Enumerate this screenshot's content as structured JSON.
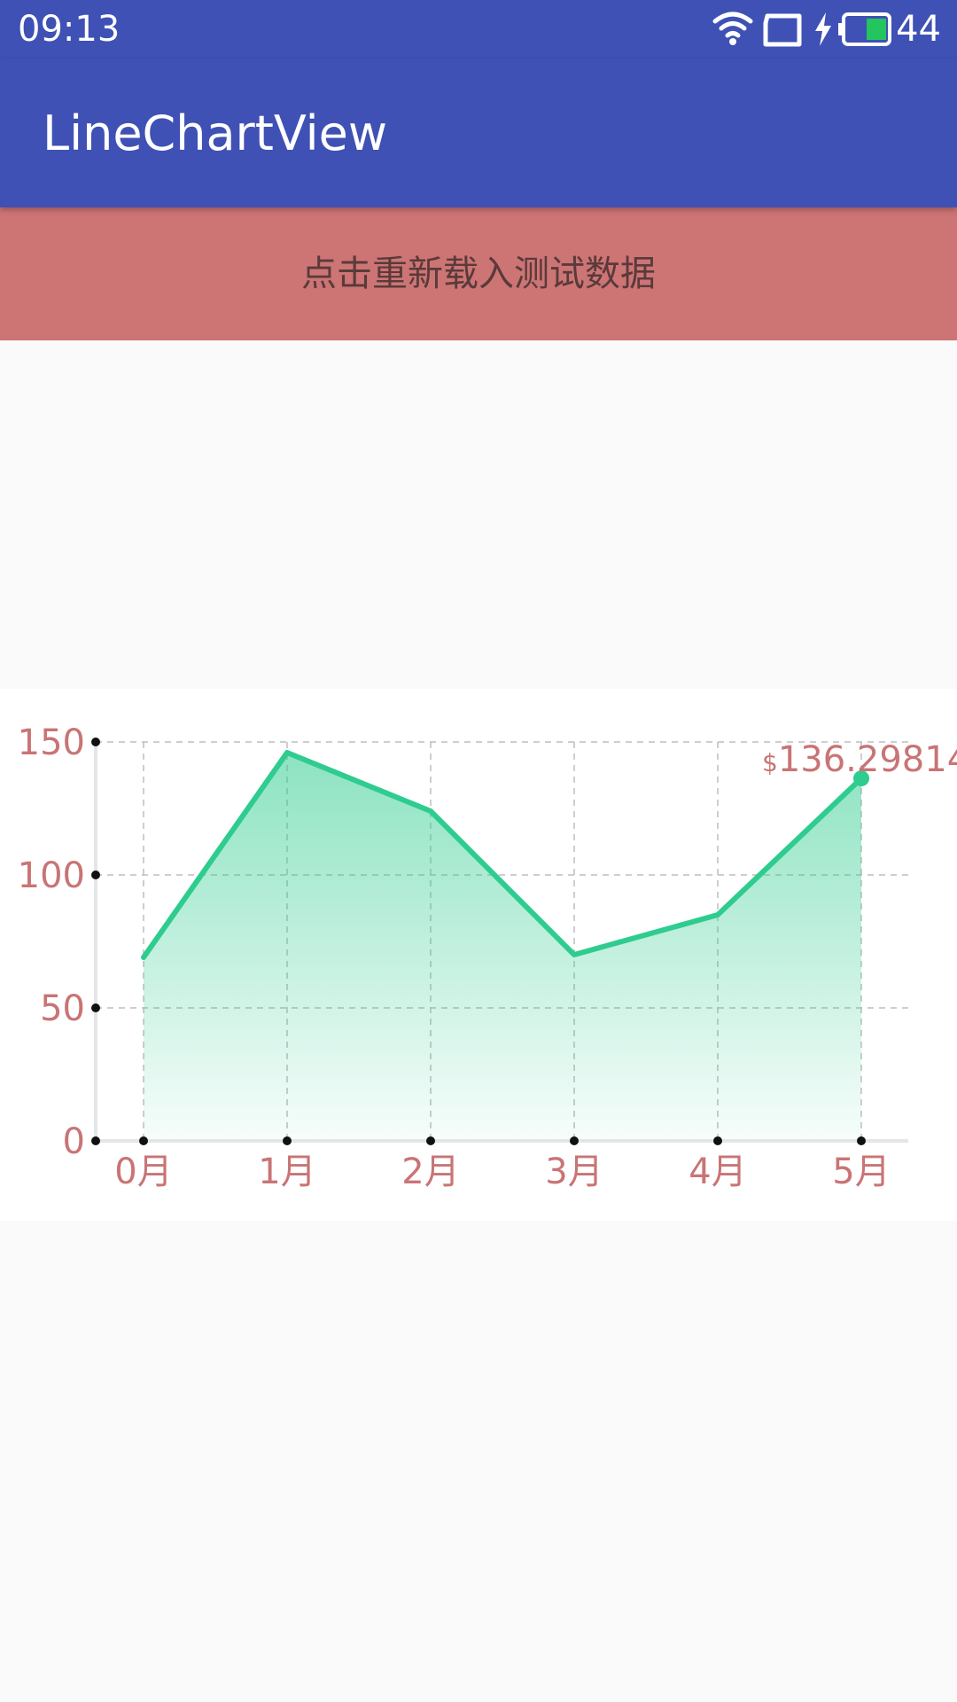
{
  "status_bar": {
    "time": "09:13",
    "battery_level": "44",
    "icons": [
      "wifi-icon",
      "screen-rotation-icon",
      "charging-bolt-icon",
      "battery-icon"
    ]
  },
  "app_bar": {
    "title": "LineChartView"
  },
  "reload_button": {
    "label": "点击重新载入测试数据"
  },
  "colors": {
    "primary": "#3f51b5",
    "button_bg": "#cd7475",
    "line": "#2ecc8f",
    "label": "#c97475"
  },
  "chart_data": {
    "type": "line",
    "categories": [
      "0月",
      "1月",
      "2月",
      "3月",
      "4月",
      "5月"
    ],
    "values": [
      69,
      146,
      124,
      70,
      85,
      136.29814
    ],
    "y_ticks": [
      "0",
      "50",
      "100",
      "150"
    ],
    "ylim": [
      0,
      150
    ],
    "grid": true,
    "area_fill": true,
    "highlight": {
      "index": 5,
      "prefix": "$",
      "label": "136.29814"
    }
  }
}
